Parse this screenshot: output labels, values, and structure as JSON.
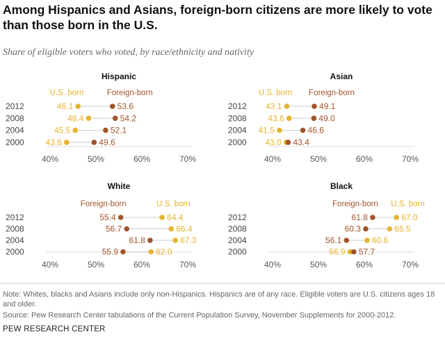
{
  "title": "Among Hispanics and Asians, foreign-born citizens are more likely to vote than those born in the U.S.",
  "subtitle": "Share of eligible voters who voted, by race/ethnicity and nativity",
  "note": "Note: Whites, blacks and Asians include only non-Hispanics. Hispanics are of any race. Eligible voters are U.S. citizens ages 18 and older.",
  "source": "Source: Pew Research Center tabulations of the Current Population Survey, November Supplements for 2000-2012.",
  "org": "PEW RESEARCH CENTER",
  "colors": {
    "us_born": "#e6b32e",
    "foreign_born": "#a0542a",
    "connector": "#cccccc",
    "axis": "#999999"
  },
  "chart_data": [
    {
      "type": "dot",
      "title": "Hispanic",
      "categories": [
        "2012",
        "2008",
        "2004",
        "2000"
      ],
      "xlim": [
        40,
        70
      ],
      "xticks": [
        "40%",
        "50%",
        "60%",
        "70%"
      ],
      "series": [
        {
          "name": "U.S. born",
          "values": [
            46.1,
            48.4,
            45.5,
            43.6
          ]
        },
        {
          "name": "Foreign-born",
          "values": [
            53.6,
            54.2,
            52.1,
            49.6
          ]
        }
      ]
    },
    {
      "type": "dot",
      "title": "Asian",
      "categories": [
        "2012",
        "2008",
        "2004",
        "2000"
      ],
      "xlim": [
        40,
        70
      ],
      "xticks": [
        "40%",
        "50%",
        "60%",
        "70%"
      ],
      "series": [
        {
          "name": "U.S. born",
          "values": [
            43.1,
            43.6,
            41.5,
            43.0
          ]
        },
        {
          "name": "Foreign-born",
          "values": [
            49.1,
            49.0,
            46.6,
            43.4
          ]
        }
      ]
    },
    {
      "type": "dot",
      "title": "White",
      "categories": [
        "2012",
        "2008",
        "2004",
        "2000"
      ],
      "xlim": [
        40,
        70
      ],
      "xticks": [
        "40%",
        "50%",
        "60%",
        "70%"
      ],
      "series": [
        {
          "name": "U.S. born",
          "values": [
            64.4,
            66.4,
            67.3,
            62.0
          ]
        },
        {
          "name": "Foreign-born",
          "values": [
            55.4,
            56.7,
            61.8,
            55.9
          ]
        }
      ]
    },
    {
      "type": "dot",
      "title": "Black",
      "categories": [
        "2012",
        "2008",
        "2004",
        "2000"
      ],
      "xlim": [
        40,
        70
      ],
      "xticks": [
        "40%",
        "50%",
        "60%",
        "70%"
      ],
      "series": [
        {
          "name": "U.S. born",
          "values": [
            67.0,
            65.5,
            60.6,
            56.9
          ]
        },
        {
          "name": "Foreign-born",
          "values": [
            61.8,
            60.3,
            56.1,
            57.7
          ]
        }
      ]
    }
  ]
}
